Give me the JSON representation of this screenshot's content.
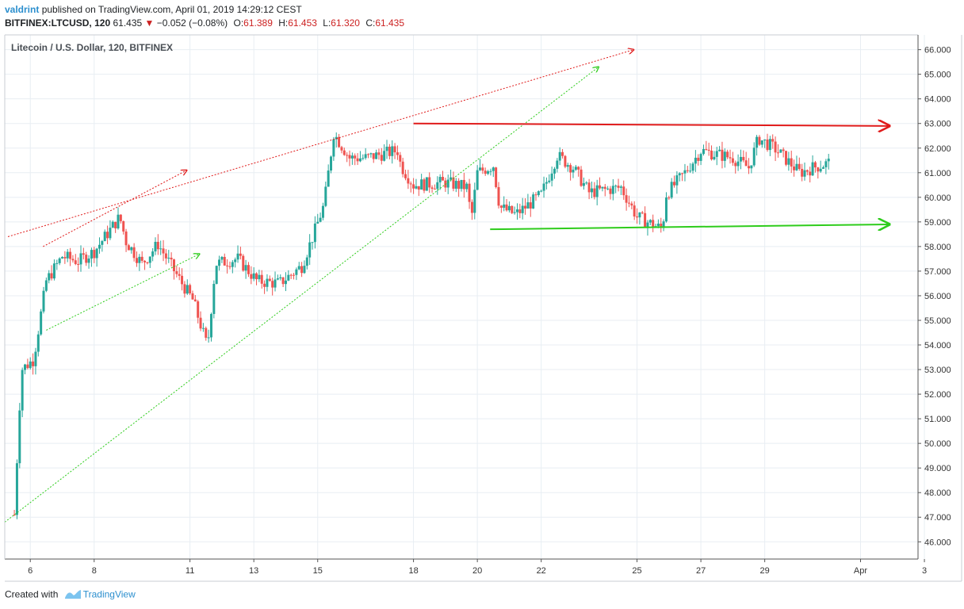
{
  "header": {
    "author": "valdrint",
    "published": "published on TradingView.com, April 01, 2019 14:29:12 CEST",
    "symbol": "BITFINEX:LTCUSD, 120",
    "last": "61.435",
    "change": "−0.052 (−0.08%)",
    "o_label": "O:",
    "o_val": "61.389",
    "h_label": "H:",
    "h_val": "61.453",
    "l_label": "L:",
    "l_val": "61.320",
    "c_label": "C:",
    "c_val": "61.435"
  },
  "footer": {
    "created": "Created with",
    "brand": "TradingView"
  },
  "colors": {
    "up": "#26a69a",
    "down": "#ef5350",
    "red_line": "#e01b1b",
    "green_line": "#2ecc1c",
    "grid": "#e8eef3",
    "axis": "#555555"
  },
  "chart_data": {
    "type": "candlestick",
    "title": "Litecoin / U.S. Dollar, 120, BITFINEX",
    "ylim": [
      45.3,
      66.6
    ],
    "yticks": [
      "66.000",
      "65.000",
      "64.000",
      "63.000",
      "62.000",
      "61.000",
      "60.000",
      "59.000",
      "58.000",
      "57.000",
      "56.000",
      "55.000",
      "54.000",
      "53.000",
      "52.000",
      "51.000",
      "50.000",
      "49.000",
      "48.000",
      "47.000",
      "46.000"
    ],
    "xticks": [
      "6",
      "8",
      "11",
      "13",
      "15",
      "18",
      "20",
      "22",
      "25",
      "27",
      "29",
      "Apr",
      "3"
    ],
    "xtick_positions": [
      0.5,
      2.5,
      5.5,
      7.5,
      9.5,
      12.5,
      14.5,
      16.5,
      19.5,
      21.5,
      23.5,
      26.5,
      28.5
    ],
    "x_range": [
      -0.3,
      28.3
    ],
    "anchors": [
      [
        0.0,
        47.1
      ],
      [
        0.22,
        53.0
      ],
      [
        0.6,
        53.4
      ],
      [
        1.0,
        56.6
      ],
      [
        1.5,
        57.6
      ],
      [
        2.0,
        57.4
      ],
      [
        2.5,
        57.8
      ],
      [
        3.3,
        59.2
      ],
      [
        3.5,
        58.2
      ],
      [
        4.0,
        57.3
      ],
      [
        4.5,
        58.1
      ],
      [
        5.2,
        56.6
      ],
      [
        5.6,
        55.8
      ],
      [
        6.05,
        53.9
      ],
      [
        6.3,
        57.3
      ],
      [
        7.0,
        57.5
      ],
      [
        7.6,
        56.6
      ],
      [
        8.3,
        56.5
      ],
      [
        9.0,
        57.2
      ],
      [
        9.4,
        58.6
      ],
      [
        9.7,
        59.7
      ],
      [
        10.0,
        62.6
      ],
      [
        10.5,
        61.6
      ],
      [
        11.0,
        61.6
      ],
      [
        12.0,
        61.9
      ],
      [
        12.1,
        61.3
      ],
      [
        12.5,
        60.5
      ],
      [
        13.5,
        60.6
      ],
      [
        14.2,
        60.4
      ],
      [
        14.3,
        59.0
      ],
      [
        14.5,
        61.0
      ],
      [
        15.0,
        61.3
      ],
      [
        15.2,
        59.6
      ],
      [
        15.7,
        59.3
      ],
      [
        16.5,
        60.1
      ],
      [
        17.0,
        61.7
      ],
      [
        17.5,
        61.2
      ],
      [
        18.0,
        60.2
      ],
      [
        19.0,
        60.4
      ],
      [
        19.5,
        59.2
      ],
      [
        20.3,
        58.7
      ],
      [
        20.4,
        60.1
      ],
      [
        21.0,
        61.0
      ],
      [
        21.5,
        61.9
      ],
      [
        22.5,
        61.6
      ],
      [
        23.0,
        61.2
      ],
      [
        23.3,
        62.4
      ],
      [
        23.8,
        62.0
      ],
      [
        24.2,
        61.5
      ],
      [
        24.6,
        61.0
      ],
      [
        25.0,
        61.2
      ],
      [
        25.5,
        61.4
      ]
    ],
    "annotations": [
      {
        "color": "red",
        "style": "dotted",
        "from": [
          -0.2,
          58.4
        ],
        "to": [
          19.4,
          66.0
        ]
      },
      {
        "color": "red",
        "style": "dotted",
        "from": [
          0.9,
          58.0
        ],
        "to": [
          5.4,
          61.1
        ]
      },
      {
        "color": "green",
        "style": "dotted",
        "from": [
          -0.3,
          46.8
        ],
        "to": [
          18.3,
          65.3
        ]
      },
      {
        "color": "green",
        "style": "dotted",
        "from": [
          1.0,
          54.6
        ],
        "to": [
          5.8,
          57.7
        ]
      },
      {
        "color": "red",
        "style": "solid",
        "from": [
          12.5,
          63.0
        ],
        "to": [
          27.4,
          62.9
        ]
      },
      {
        "color": "green",
        "style": "solid",
        "from": [
          14.9,
          58.7
        ],
        "to": [
          27.4,
          58.9
        ]
      }
    ]
  }
}
